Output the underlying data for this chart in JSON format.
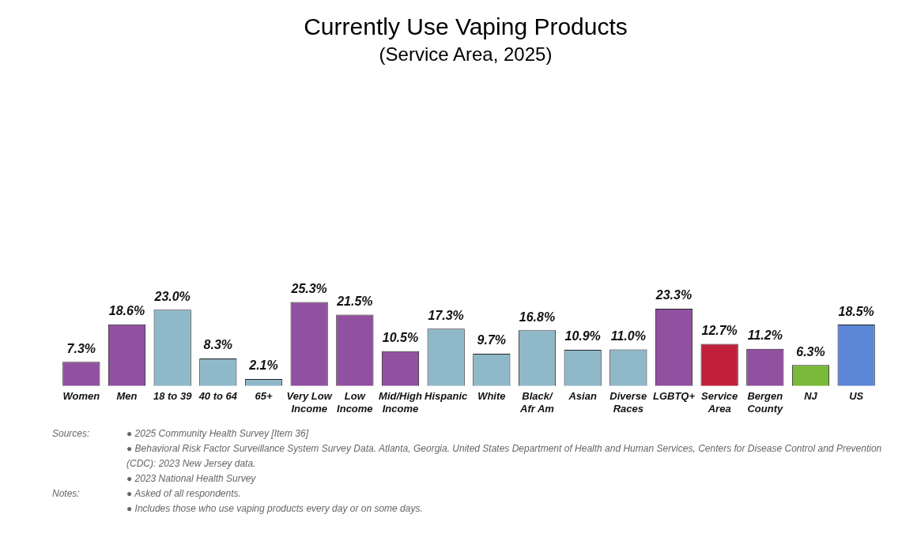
{
  "chart_data": {
    "type": "bar",
    "title": "Currently Use Vaping Products",
    "subtitle": "(Service Area, 2025)",
    "categories": [
      "Women",
      "Men",
      "18 to 39",
      "40 to 64",
      "65+",
      "Very Low Income",
      "Low Income",
      "Mid/High Income",
      "Hispanic",
      "White",
      "Black/ Afr Am",
      "Asian",
      "Diverse Races",
      "LGBTQ+",
      "Service Area",
      "Bergen County",
      "NJ",
      "US"
    ],
    "values": [
      7.3,
      18.6,
      23.0,
      8.3,
      2.1,
      25.3,
      21.5,
      10.5,
      17.3,
      9.7,
      16.8,
      10.9,
      11.0,
      23.3,
      12.7,
      11.2,
      6.3,
      18.5
    ],
    "value_labels": [
      "7.3%",
      "18.6%",
      "23.0%",
      "8.3%",
      "2.1%",
      "25.3%",
      "21.5%",
      "10.5%",
      "17.3%",
      "9.7%",
      "16.8%",
      "10.9%",
      "11.0%",
      "23.3%",
      "12.7%",
      "11.2%",
      "6.3%",
      "18.5%"
    ],
    "colors": [
      "#9150a0",
      "#9150a0",
      "#8fb8c8",
      "#8fb8c8",
      "#8fb8c8",
      "#9150a0",
      "#9150a0",
      "#9150a0",
      "#8fb8c8",
      "#8fb8c8",
      "#8fb8c8",
      "#8fb8c8",
      "#8fb8c8",
      "#9150a0",
      "#c0203a",
      "#9150a0",
      "#7ab93a",
      "#5b87d6"
    ],
    "tick_labels": "x",
    "grid": false,
    "legend": false,
    "annotations": [
      "Sources:",
      "● 2025 Community Health Survey [Item 36]",
      "● Behavioral Risk Factor Surveillance System Survey Data. Atlanta, Georgia. United States Department of Health and Human Services, Centers for Disease Control and Prevention (CDC): 2023 New Jersey data.",
      "● 2023 National Health Survey",
      "Notes:",
      "● Asked of all respondents.",
      "● Includes those who use vaping products every day or on some days."
    ]
  }
}
